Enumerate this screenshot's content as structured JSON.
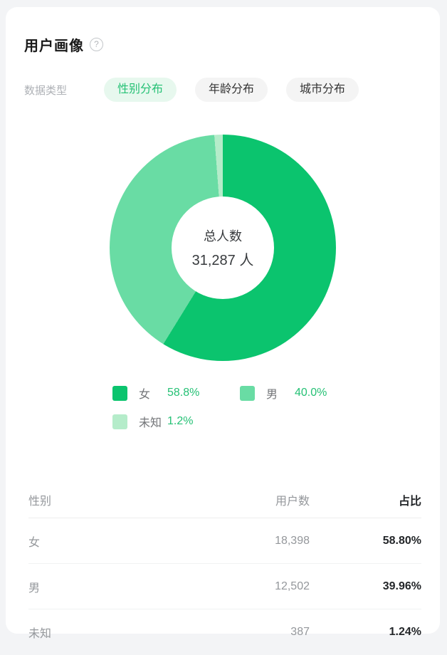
{
  "header": {
    "title": "用户画像",
    "help_glyph": "?"
  },
  "filter": {
    "label": "数据类型",
    "tabs": [
      {
        "label": "性别分布",
        "active": true
      },
      {
        "label": "年龄分布",
        "active": false
      },
      {
        "label": "城市分布",
        "active": false
      }
    ]
  },
  "chart_data": {
    "type": "pie",
    "donut": true,
    "title": "性别分布",
    "center_label": "总人数",
    "center_value": "31,287 人",
    "total": 31287,
    "categories": [
      "女",
      "男",
      "未知"
    ],
    "values": [
      58.8,
      40.0,
      1.2
    ],
    "counts": [
      18398,
      12502,
      387
    ],
    "colors": [
      "#0bc46e",
      "#69dca4",
      "#b5ecca"
    ],
    "start_angle_deg": 0,
    "direction": "clockwise",
    "legend_position": "bottom",
    "legend": [
      {
        "label": "女",
        "value": "58.8%",
        "color": "#0bc46e"
      },
      {
        "label": "男",
        "value": "40.0%",
        "color": "#69dca4"
      },
      {
        "label": "未知",
        "value": "1.2%",
        "color": "#b5ecca"
      }
    ]
  },
  "table": {
    "headers": [
      "性别",
      "用户数",
      "占比"
    ],
    "rows": [
      {
        "label": "女",
        "count": "18,398",
        "percent": "58.80%"
      },
      {
        "label": "男",
        "count": "12,502",
        "percent": "39.96%"
      },
      {
        "label": "未知",
        "count": "387",
        "percent": "1.24%"
      }
    ]
  },
  "colors": {
    "accent_green": "#25c175",
    "tab_active_bg": "#e7f8ee",
    "card_bg": "#ffffff",
    "page_bg": "#f3f4f6"
  }
}
